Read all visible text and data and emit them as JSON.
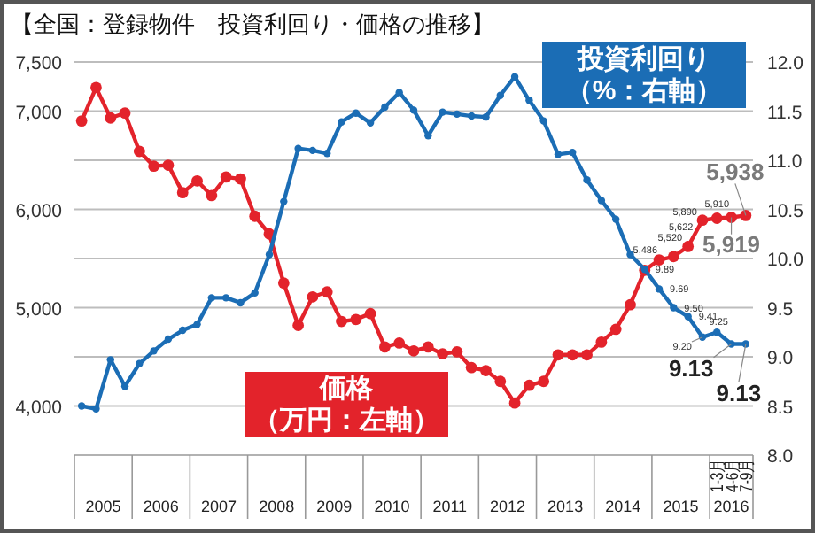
{
  "chart_data": {
    "type": "line",
    "title": "【全国：登録物件　投資利回り・価格の推移】",
    "x": [
      2005.125,
      2005.375,
      2005.625,
      2005.875,
      2006.125,
      2006.375,
      2006.625,
      2006.875,
      2007.125,
      2007.375,
      2007.625,
      2007.875,
      2008.125,
      2008.375,
      2008.625,
      2008.875,
      2009.125,
      2009.375,
      2009.625,
      2009.875,
      2010.125,
      2010.375,
      2010.625,
      2010.875,
      2011.125,
      2011.375,
      2011.625,
      2011.875,
      2012.125,
      2012.375,
      2012.625,
      2012.875,
      2013.125,
      2013.375,
      2013.625,
      2013.875,
      2014.125,
      2014.375,
      2014.625,
      2014.875,
      2015.125,
      2015.375,
      2015.625,
      2015.875,
      2016.125,
      2016.375,
      2016.625
    ],
    "xlim": [
      2005,
      2016.75
    ],
    "xticks": [
      {
        "value": 2005.5,
        "label": "2005"
      },
      {
        "value": 2006.5,
        "label": "2006"
      },
      {
        "value": 2007.5,
        "label": "2007"
      },
      {
        "value": 2008.5,
        "label": "2008"
      },
      {
        "value": 2009.5,
        "label": "2009"
      },
      {
        "value": 2010.5,
        "label": "2010"
      },
      {
        "value": 2011.5,
        "label": "2011"
      },
      {
        "value": 2012.5,
        "label": "2012"
      },
      {
        "value": 2013.5,
        "label": "2013"
      },
      {
        "value": 2014.5,
        "label": "2014"
      },
      {
        "value": 2015.5,
        "label": "2015"
      },
      {
        "value": 2016.375,
        "label": "2016"
      }
    ],
    "annotations": [
      "1-3月",
      "4-6月",
      "7-9月"
    ],
    "ylim": [
      3500,
      7500
    ],
    "yticks": [
      {
        "value": 4000,
        "label": "4,000"
      },
      {
        "value": 4500,
        "label": null
      },
      {
        "value": 5000,
        "label": "5,000"
      },
      {
        "value": 5500,
        "label": null
      },
      {
        "value": 6000,
        "label": "6,000"
      },
      {
        "value": 6500,
        "label": null
      },
      {
        "value": 7000,
        "label": "7,000"
      },
      {
        "value": 7500,
        "label": "7,500"
      }
    ],
    "y2lim": [
      8,
      12
    ],
    "y2ticks": [
      {
        "value": 8,
        "label": "8.0"
      },
      8.5,
      {
        "value": 9,
        "label": "9.0"
      },
      9.5,
      {
        "value": 10,
        "label": "10.0"
      },
      10.5,
      {
        "value": 11,
        "label": "11.0"
      },
      11.5,
      {
        "value": 12,
        "label": "12.0"
      }
    ],
    "grid": "y",
    "marker": "circle",
    "line_style": "solid",
    "series": [
      {
        "name": "価格（万円：左軸）",
        "color": "#e3232b",
        "values": [
          6900,
          7240,
          6930,
          6980,
          6590,
          6440,
          6450,
          6170,
          6290,
          6140,
          6330,
          6310,
          5930,
          5750,
          5250,
          4820,
          5110,
          5160,
          4860,
          4880,
          4940,
          4600,
          4640,
          4560,
          4600,
          4530,
          4550,
          4390,
          4360,
          4250,
          4030,
          4210,
          4250,
          4520,
          4520,
          4520,
          4650,
          4780,
          5030,
          5380,
          5486,
          5520,
          5622,
          5890,
          5910,
          5919,
          5938
        ],
        "value_labels": [
          null,
          null,
          null,
          null,
          null,
          null,
          null,
          null,
          null,
          null,
          null,
          null,
          null,
          null,
          null,
          null,
          null,
          null,
          null,
          null,
          null,
          null,
          null,
          null,
          null,
          null,
          null,
          null,
          null,
          null,
          null,
          null,
          null,
          null,
          null,
          null,
          null,
          null,
          null,
          null,
          "5,486",
          "5,520",
          "5,622",
          "5,890",
          "5,910",
          "5,919",
          "5,938"
        ]
      },
      {
        "name": "投資利回り（%：右軸）",
        "color": "#1b6db5",
        "axis": "y2",
        "values": [
          8.5,
          8.47,
          8.97,
          8.7,
          8.93,
          9.06,
          9.18,
          9.27,
          9.33,
          9.6,
          9.6,
          9.55,
          9.65,
          10.04,
          10.58,
          11.12,
          11.1,
          11.07,
          11.39,
          11.48,
          11.38,
          11.54,
          11.69,
          11.51,
          11.25,
          11.49,
          11.47,
          11.45,
          11.44,
          11.66,
          11.85,
          11.61,
          11.4,
          11.06,
          11.08,
          10.8,
          10.59,
          10.4,
          10.04,
          9.89,
          9.69,
          9.5,
          9.41,
          9.2,
          9.25,
          9.13,
          9.13
        ],
        "value_labels": [
          null,
          null,
          null,
          null,
          null,
          null,
          null,
          null,
          null,
          null,
          null,
          null,
          null,
          null,
          null,
          null,
          null,
          null,
          null,
          null,
          null,
          null,
          null,
          null,
          null,
          null,
          null,
          null,
          null,
          null,
          null,
          null,
          null,
          null,
          null,
          null,
          null,
          null,
          null,
          "9.89",
          "9.69",
          "9.50",
          "9.41",
          "9.20",
          "9.25",
          "9.13",
          "9.13"
        ]
      }
    ]
  }
}
